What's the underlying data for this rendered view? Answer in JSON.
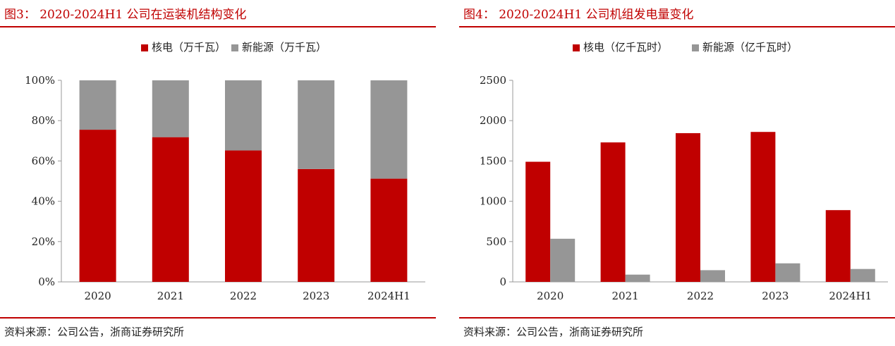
{
  "colors": {
    "nuclear": "#c00000",
    "renewable": "#969696",
    "accent": "#c00000"
  },
  "figures": [
    {
      "title": "图3： 2020-2024H1 公司在运装机结构变化",
      "source": "资料来源：公司公告，浙商证券研究所"
    },
    {
      "title": "图4： 2020-2024H1 公司机组发电量变化",
      "source": "资料来源：公司公告，浙商证券研究所"
    }
  ],
  "chart_data": [
    {
      "type": "bar",
      "stacked": true,
      "categories": [
        "2020",
        "2021",
        "2022",
        "2023",
        "2024H1"
      ],
      "series": [
        {
          "name": "核电（万千瓦）",
          "values": [
            75.5,
            71.8,
            65.2,
            56.0,
            51.2
          ]
        },
        {
          "name": "新能源（万千瓦）",
          "values": [
            24.5,
            28.2,
            34.8,
            44.0,
            48.8
          ]
        }
      ],
      "ylim": [
        0,
        100
      ],
      "yticks": [
        0,
        20,
        40,
        60,
        80,
        100
      ],
      "ytick_labels": [
        "0%",
        "20%",
        "40%",
        "60%",
        "80%",
        "100%"
      ],
      "legend": "top-center",
      "grid": false
    },
    {
      "type": "bar",
      "stacked": false,
      "categories": [
        "2020",
        "2021",
        "2022",
        "2023",
        "2024H1"
      ],
      "series": [
        {
          "name": "核电（亿千瓦时）",
          "values": [
            1490,
            1730,
            1845,
            1860,
            890
          ]
        },
        {
          "name": "新能源（亿千瓦时）",
          "values": [
            535,
            90,
            145,
            230,
            160
          ]
        }
      ],
      "ylim": [
        0,
        2500
      ],
      "yticks": [
        0,
        500,
        1000,
        1500,
        2000,
        2500
      ],
      "ytick_labels": [
        "0",
        "500",
        "1000",
        "1500",
        "2000",
        "2500"
      ],
      "legend": "top-center",
      "grid": false
    }
  ]
}
